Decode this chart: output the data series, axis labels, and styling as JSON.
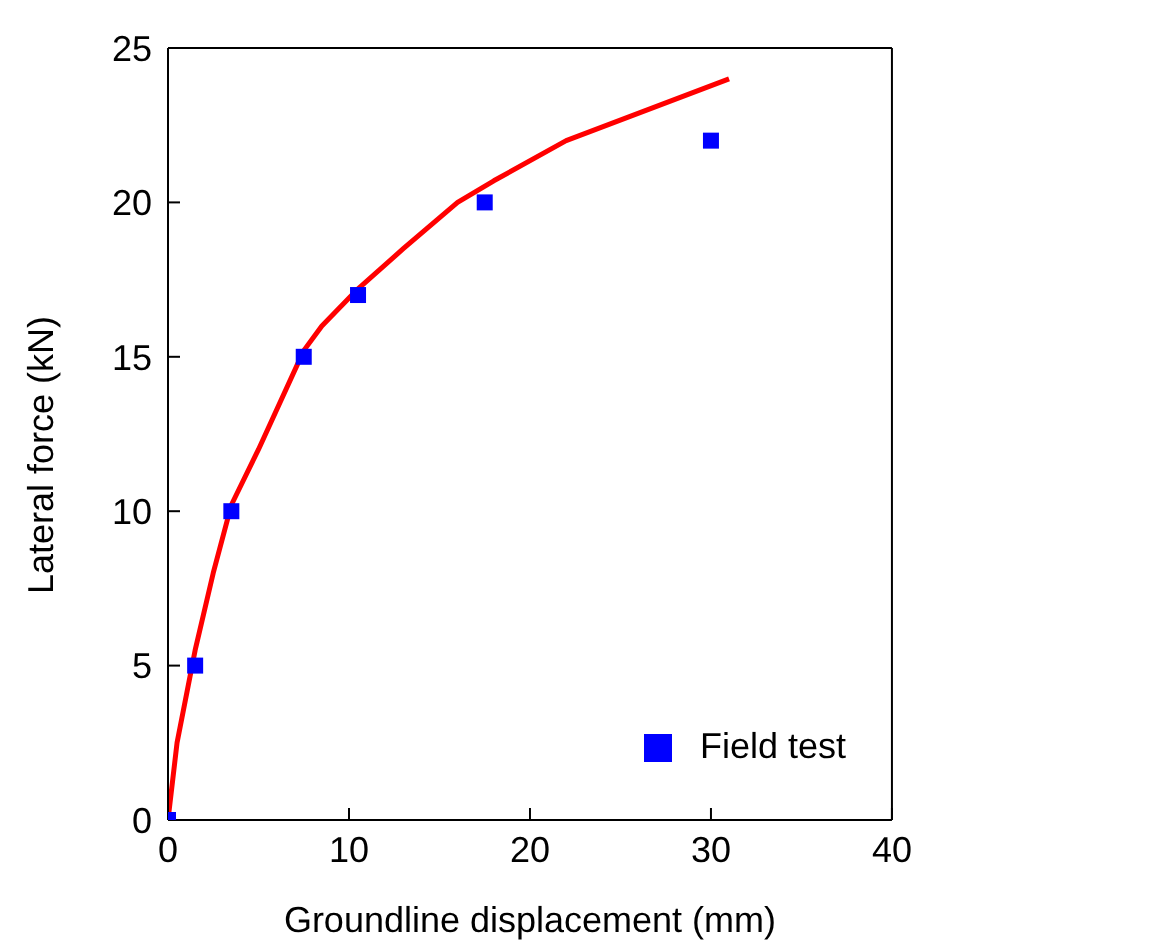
{
  "chart_data": {
    "type": "line",
    "xlabel": "Groundline displacement (mm)",
    "ylabel": "Lateral force (kN)",
    "xlim": [
      0,
      40
    ],
    "xticks": [
      0,
      10,
      20,
      30,
      40
    ],
    "ylim": [
      0,
      25
    ],
    "yticks": [
      0,
      5,
      10,
      15,
      20,
      25
    ],
    "legend": "bottom right",
    "series": [
      {
        "color": "#ff0000",
        "marker": "none",
        "x": [
          0,
          0.5,
          1.5,
          2.5,
          3.5,
          5,
          7.5,
          8.5,
          10.5,
          13,
          16,
          18,
          22,
          31
        ],
        "values": [
          0,
          2.5,
          5.5,
          8,
          10.2,
          12,
          15.2,
          16,
          17.2,
          18.5,
          20,
          20.7,
          22,
          24
        ]
      },
      {
        "type": "scatter",
        "name": "Field test",
        "color": "#0000ff",
        "marker": "square",
        "x": [
          0,
          1.5,
          3.5,
          7.5,
          10.5,
          17.5,
          30
        ],
        "values": [
          0,
          5,
          10,
          15,
          17,
          20,
          22
        ]
      }
    ]
  }
}
